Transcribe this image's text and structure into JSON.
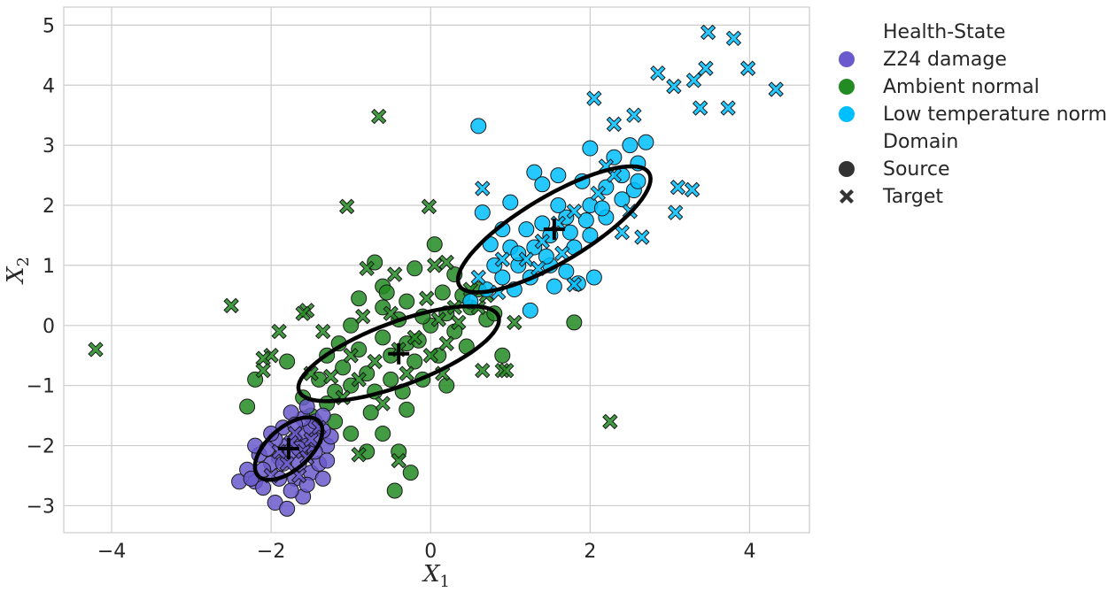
{
  "chart_data": {
    "type": "scatter",
    "xlabel": "X",
    "xlabel_sub": "1",
    "ylabel": "X",
    "ylabel_sub": "2",
    "xlim": [
      -4.6,
      4.75
    ],
    "ylim": [
      -3.45,
      5.3
    ],
    "xticks": [
      -4,
      -2,
      0,
      2,
      4
    ],
    "yticks": [
      -3,
      -2,
      -1,
      0,
      1,
      2,
      3,
      4,
      5
    ],
    "grid": true,
    "legend": {
      "placement": "outside-right",
      "hue_title": "Health-State",
      "style_title": "Domain",
      "hue_entries": [
        {
          "label": "Z24 damage",
          "color": "#6a5acd"
        },
        {
          "label": "Ambient normal",
          "color": "#228b22"
        },
        {
          "label": "Low temperature normal",
          "color": "#00bfff"
        }
      ],
      "style_entries": [
        {
          "label": "Source",
          "marker": "circle"
        },
        {
          "label": "Target",
          "marker": "x"
        }
      ]
    },
    "series": [
      {
        "name": "Z24 damage",
        "color": "#6a5acd",
        "source": [
          [
            -1.8,
            -2.0
          ],
          [
            -1.7,
            -1.9
          ],
          [
            -1.9,
            -2.2
          ],
          [
            -1.6,
            -1.8
          ],
          [
            -1.5,
            -1.7
          ],
          [
            -2.0,
            -2.3
          ],
          [
            -2.1,
            -2.4
          ],
          [
            -1.75,
            -2.1
          ],
          [
            -1.65,
            -2.3
          ],
          [
            -1.55,
            -2.0
          ],
          [
            -1.45,
            -1.6
          ],
          [
            -1.35,
            -1.5
          ],
          [
            -1.85,
            -1.7
          ],
          [
            -1.95,
            -1.9
          ],
          [
            -2.2,
            -2.6
          ],
          [
            -2.4,
            -2.6
          ],
          [
            -2.3,
            -2.4
          ],
          [
            -2.15,
            -2.15
          ],
          [
            -1.9,
            -2.55
          ],
          [
            -1.7,
            -2.55
          ],
          [
            -1.5,
            -2.45
          ],
          [
            -1.4,
            -2.3
          ],
          [
            -1.3,
            -2.0
          ],
          [
            -1.6,
            -1.55
          ],
          [
            -1.75,
            -1.45
          ],
          [
            -1.55,
            -1.35
          ],
          [
            -2.0,
            -1.8
          ],
          [
            -2.2,
            -2.0
          ],
          [
            -1.95,
            -2.95
          ],
          [
            -1.8,
            -3.05
          ],
          [
            -1.6,
            -2.85
          ],
          [
            -1.35,
            -2.55
          ],
          [
            -1.3,
            -2.25
          ],
          [
            -1.25,
            -1.85
          ],
          [
            -2.05,
            -2.05
          ],
          [
            -1.85,
            -2.3
          ],
          [
            -1.65,
            -2.05
          ],
          [
            -1.45,
            -2.1
          ],
          [
            -1.55,
            -2.65
          ],
          [
            -1.75,
            -2.75
          ],
          [
            -2.25,
            -2.55
          ],
          [
            -2.1,
            -2.7
          ],
          [
            -1.35,
            -1.75
          ],
          [
            -1.45,
            -1.9
          ],
          [
            -1.7,
            -1.65
          ]
        ],
        "target": [
          [
            -1.7,
            -1.8
          ],
          [
            -1.6,
            -2.1
          ],
          [
            -1.8,
            -2.3
          ],
          [
            -1.5,
            -1.9
          ],
          [
            -1.9,
            -2.1
          ],
          [
            -1.4,
            -1.7
          ],
          [
            -1.65,
            -2.5
          ],
          [
            -2.0,
            -2.5
          ],
          [
            -1.55,
            -2.2
          ],
          [
            -1.75,
            -1.95
          ]
        ],
        "mean": [
          -1.78,
          -2.05
        ]
      },
      {
        "name": "Ambient normal",
        "color": "#228b22",
        "source": [
          [
            -0.5,
            -0.5
          ],
          [
            -0.3,
            -0.3
          ],
          [
            0.0,
            0.0
          ],
          [
            0.2,
            0.2
          ],
          [
            -0.8,
            -0.8
          ],
          [
            -1.0,
            -1.0
          ],
          [
            -1.2,
            -1.1
          ],
          [
            -0.6,
            -0.2
          ],
          [
            -0.2,
            -0.6
          ],
          [
            0.3,
            -0.1
          ],
          [
            0.5,
            0.3
          ],
          [
            -0.4,
            0.1
          ],
          [
            -0.9,
            -0.4
          ],
          [
            -1.1,
            -0.7
          ],
          [
            -1.3,
            -1.3
          ],
          [
            -1.5,
            -1.5
          ],
          [
            -0.7,
            -1.1
          ],
          [
            -0.1,
            -0.9
          ],
          [
            0.1,
            -0.5
          ],
          [
            0.4,
            0.5
          ],
          [
            0.6,
            0.6
          ],
          [
            -0.3,
            0.4
          ],
          [
            -0.6,
            0.3
          ],
          [
            -1.4,
            -0.9
          ],
          [
            -1.6,
            -1.2
          ],
          [
            -2.2,
            -0.9
          ],
          [
            -2.3,
            -1.35
          ],
          [
            -1.8,
            -0.6
          ],
          [
            -0.6,
            0.65
          ],
          [
            -0.9,
            0.45
          ],
          [
            0.05,
            1.35
          ],
          [
            -0.2,
            0.95
          ],
          [
            0.3,
            0.85
          ],
          [
            -0.7,
            1.05
          ],
          [
            0.7,
            0.1
          ],
          [
            0.9,
            -0.5
          ],
          [
            0.2,
            -1.0
          ],
          [
            -0.3,
            -1.4
          ],
          [
            -0.6,
            -1.8
          ],
          [
            -0.8,
            -2.1
          ],
          [
            -0.4,
            -2.1
          ],
          [
            -0.25,
            -2.45
          ],
          [
            -0.45,
            -2.75
          ],
          [
            1.8,
            0.05
          ],
          [
            -1.0,
            -1.8
          ],
          [
            -1.2,
            -1.6
          ],
          [
            0.8,
            0.2
          ],
          [
            -0.1,
            0.15
          ],
          [
            -0.5,
            -0.9
          ],
          [
            -1.0,
            0.0
          ],
          [
            -1.3,
            -0.5
          ],
          [
            -0.75,
            -1.45
          ],
          [
            -0.35,
            -1.1
          ],
          [
            0.45,
            -0.35
          ],
          [
            0.15,
            0.55
          ],
          [
            -0.55,
            0.55
          ],
          [
            -1.15,
            -0.3
          ],
          [
            -0.15,
            -0.25
          ]
        ],
        "target": [
          [
            -0.4,
            -0.4
          ],
          [
            -0.2,
            -0.2
          ],
          [
            0.1,
            0.1
          ],
          [
            -0.7,
            -0.6
          ],
          [
            -0.9,
            -0.9
          ],
          [
            0.3,
            0.3
          ],
          [
            -1.1,
            -1.2
          ],
          [
            0.5,
            0.6
          ],
          [
            -0.5,
            0.2
          ],
          [
            0.0,
            -0.5
          ],
          [
            -0.65,
            3.48
          ],
          [
            -4.2,
            -0.4
          ],
          [
            -2.5,
            0.33
          ],
          [
            -1.05,
            1.98
          ],
          [
            -0.02,
            1.98
          ],
          [
            -1.55,
            0.25
          ],
          [
            -1.6,
            0.2
          ],
          [
            -0.8,
            0.95
          ],
          [
            0.05,
            1.0
          ],
          [
            0.2,
            1.05
          ],
          [
            0.9,
            -0.75
          ],
          [
            0.95,
            -0.75
          ],
          [
            0.65,
            -0.75
          ],
          [
            2.25,
            -1.6
          ],
          [
            -0.4,
            -2.25
          ],
          [
            -0.9,
            -2.15
          ],
          [
            -2.0,
            -0.5
          ],
          [
            -2.1,
            -0.55
          ],
          [
            -2.1,
            -0.75
          ],
          [
            -1.9,
            -0.1
          ],
          [
            0.6,
            0.3
          ],
          [
            -0.3,
            -0.8
          ],
          [
            -1.0,
            -0.5
          ],
          [
            0.2,
            -0.3
          ],
          [
            -0.6,
            -1.3
          ],
          [
            0.35,
            0.05
          ],
          [
            -0.85,
            0.15
          ],
          [
            -1.25,
            -0.85
          ],
          [
            -0.05,
            0.45
          ],
          [
            0.7,
            0.5
          ],
          [
            -1.5,
            -0.8
          ],
          [
            -0.45,
            0.85
          ],
          [
            0.15,
            -0.8
          ],
          [
            -1.35,
            -0.1
          ],
          [
            1.05,
            0.05
          ]
        ],
        "mean": [
          -0.4,
          -0.47
        ]
      },
      {
        "name": "Low temperature normal",
        "color": "#00bfff",
        "source": [
          [
            1.5,
            1.5
          ],
          [
            1.7,
            1.8
          ],
          [
            2.0,
            2.0
          ],
          [
            1.3,
            1.3
          ],
          [
            1.1,
            1.0
          ],
          [
            0.9,
            0.8
          ],
          [
            0.7,
            0.6
          ],
          [
            0.5,
            0.4
          ],
          [
            2.2,
            2.3
          ],
          [
            2.4,
            2.5
          ],
          [
            2.6,
            2.7
          ],
          [
            2.5,
            3.0
          ],
          [
            2.3,
            2.8
          ],
          [
            1.9,
            2.4
          ],
          [
            1.6,
            2.0
          ],
          [
            1.4,
            1.7
          ],
          [
            1.2,
            1.6
          ],
          [
            1.0,
            1.3
          ],
          [
            0.8,
            1.0
          ],
          [
            1.8,
            1.3
          ],
          [
            2.0,
            1.5
          ],
          [
            2.2,
            1.8
          ],
          [
            1.5,
            1.0
          ],
          [
            1.25,
            0.8
          ],
          [
            1.05,
            0.6
          ],
          [
            0.6,
            3.32
          ],
          [
            1.3,
            2.55
          ],
          [
            1.0,
            2.05
          ],
          [
            0.65,
            1.88
          ],
          [
            0.9,
            1.6
          ],
          [
            1.6,
            2.5
          ],
          [
            1.4,
            2.35
          ],
          [
            2.0,
            2.95
          ],
          [
            2.7,
            3.05
          ],
          [
            2.55,
            2.25
          ],
          [
            1.7,
            0.9
          ],
          [
            2.05,
            0.8
          ],
          [
            1.85,
            0.7
          ],
          [
            1.25,
            0.25
          ],
          [
            1.55,
            0.65
          ],
          [
            2.4,
            2.1
          ],
          [
            2.6,
            2.4
          ],
          [
            1.75,
            1.55
          ],
          [
            1.95,
            1.75
          ],
          [
            1.1,
            1.2
          ],
          [
            0.75,
            1.35
          ],
          [
            1.45,
            1.15
          ],
          [
            2.15,
            1.95
          ]
        ],
        "target": [
          [
            1.6,
            1.7
          ],
          [
            1.8,
            1.9
          ],
          [
            2.1,
            2.2
          ],
          [
            1.4,
            1.4
          ],
          [
            1.2,
            1.1
          ],
          [
            2.3,
            2.5
          ],
          [
            0.6,
            0.8
          ],
          [
            0.9,
            1.1
          ],
          [
            2.05,
            3.78
          ],
          [
            2.3,
            3.35
          ],
          [
            2.55,
            3.5
          ],
          [
            2.85,
            4.2
          ],
          [
            3.05,
            3.98
          ],
          [
            3.3,
            4.08
          ],
          [
            3.45,
            4.28
          ],
          [
            3.48,
            4.88
          ],
          [
            3.8,
            4.78
          ],
          [
            3.98,
            4.28
          ],
          [
            4.33,
            3.93
          ],
          [
            3.38,
            3.62
          ],
          [
            3.73,
            3.62
          ],
          [
            3.1,
            2.3
          ],
          [
            3.28,
            2.26
          ],
          [
            3.07,
            1.88
          ],
          [
            2.65,
            1.47
          ],
          [
            2.4,
            1.55
          ],
          [
            0.65,
            2.28
          ],
          [
            1.8,
            0.68
          ],
          [
            2.5,
            1.9
          ],
          [
            1.35,
            0.95
          ],
          [
            1.65,
            1.2
          ],
          [
            2.2,
            2.65
          ],
          [
            0.85,
            0.55
          ]
        ],
        "mean": [
          1.55,
          1.6
        ]
      }
    ],
    "ellipses": [
      {
        "cx": -1.78,
        "cy": -2.05,
        "rx": 0.6,
        "ry": 0.3,
        "angle_deg": 55
      },
      {
        "cx": -0.4,
        "cy": -0.47,
        "rx": 1.4,
        "ry": 0.5,
        "angle_deg": 28
      },
      {
        "cx": 1.55,
        "cy": 1.6,
        "rx": 1.52,
        "ry": 0.5,
        "angle_deg": 40
      }
    ]
  }
}
